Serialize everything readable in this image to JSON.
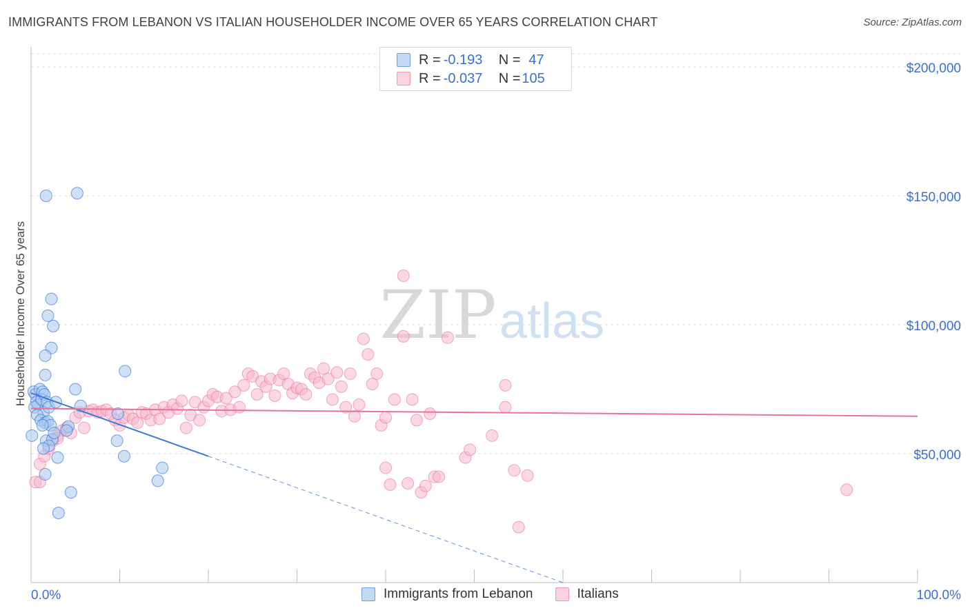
{
  "title": "IMMIGRANTS FROM LEBANON VS ITALIAN HOUSEHOLDER INCOME OVER 65 YEARS CORRELATION CHART",
  "source": "Source: ZipAtlas.com",
  "watermark": {
    "zip": "ZIP",
    "atlas": "atlas"
  },
  "legend_top": [
    {
      "r_label": "R = ",
      "r_value": "-0.193",
      "n_label": "N = ",
      "n_value": "47"
    },
    {
      "r_label": "R = ",
      "r_value": "-0.037",
      "n_label": "N = ",
      "n_value": "105"
    }
  ],
  "colors": {
    "blue": "#3a78d8",
    "blue_fill": "#a9c8f0",
    "pink": "#e8729a",
    "pink_fill": "#f7b8cc",
    "axis_label": "#3a6fd1"
  },
  "chart_data": {
    "type": "scatter",
    "title": "IMMIGRANTS FROM LEBANON VS ITALIAN HOUSEHOLDER INCOME OVER 65 YEARS CORRELATION CHART",
    "xlabel": "",
    "ylabel": "Householder Income Over 65 years",
    "xlim": [
      0,
      100
    ],
    "ylim": [
      0,
      210000
    ],
    "x_tick_labels": [
      "0.0%",
      "100.0%"
    ],
    "y_ticks": [
      50000,
      100000,
      150000,
      200000
    ],
    "y_tick_labels": [
      "$50,000",
      "$100,000",
      "$150,000",
      "$200,000"
    ],
    "grid": true,
    "series": [
      {
        "name": "Immigrants from Lebanon",
        "color": "#3a78d8",
        "trend": {
          "x": [
            0,
            20
          ],
          "y": [
            73500,
            49000
          ],
          "dashed_to": [
            100,
            -49000
          ]
        },
        "points": [
          [
            0.3,
            74000
          ],
          [
            0.5,
            73000
          ],
          [
            0.6,
            70000
          ],
          [
            0.8,
            69000
          ],
          [
            0.4,
            68000
          ],
          [
            1.0,
            75000
          ],
          [
            1.3,
            74000
          ],
          [
            1.2,
            71000
          ],
          [
            1.5,
            73000
          ],
          [
            1.8,
            70000
          ],
          [
            1.4,
            66000
          ],
          [
            0.7,
            65000
          ],
          [
            2.0,
            68000
          ],
          [
            1.1,
            63000
          ],
          [
            1.6,
            62000
          ],
          [
            1.9,
            62500
          ],
          [
            2.2,
            61000
          ],
          [
            1.7,
            55000
          ],
          [
            2.4,
            55500
          ],
          [
            2.0,
            53000
          ],
          [
            1.4,
            52000
          ],
          [
            2.6,
            58000
          ],
          [
            3.0,
            48500
          ],
          [
            1.6,
            42000
          ],
          [
            4.2,
            60500
          ],
          [
            4.5,
            35000
          ],
          [
            4.0,
            59000
          ],
          [
            2.5,
            99500
          ],
          [
            2.3,
            91000
          ],
          [
            1.6,
            88000
          ],
          [
            2.3,
            110000
          ],
          [
            1.9,
            103500
          ],
          [
            1.6,
            80500
          ],
          [
            5.0,
            75000
          ],
          [
            5.6,
            68500
          ],
          [
            10.6,
            82000
          ],
          [
            9.8,
            65500
          ],
          [
            9.7,
            55000
          ],
          [
            10.5,
            49000
          ],
          [
            3.1,
            27000
          ],
          [
            1.7,
            150000
          ],
          [
            5.2,
            151000
          ],
          [
            14.8,
            44500
          ],
          [
            14.3,
            39500
          ],
          [
            0.1,
            57000
          ],
          [
            1.3,
            61000
          ],
          [
            2.8,
            70000
          ]
        ]
      },
      {
        "name": "Italians",
        "color": "#e8729a",
        "trend": {
          "x": [
            0,
            100
          ],
          "y": [
            67500,
            64500
          ]
        },
        "points": [
          [
            0.5,
            39000
          ],
          [
            1.0,
            46000
          ],
          [
            1.5,
            49000
          ],
          [
            2.0,
            52000
          ],
          [
            2.5,
            55000
          ],
          [
            3.0,
            57000
          ],
          [
            3.5,
            59000
          ],
          [
            4.0,
            60000
          ],
          [
            4.5,
            58000
          ],
          [
            5.0,
            64000
          ],
          [
            5.5,
            66000
          ],
          [
            6.0,
            60000
          ],
          [
            6.5,
            66500
          ],
          [
            7.0,
            67000
          ],
          [
            7.5,
            66000
          ],
          [
            8.0,
            66500
          ],
          [
            8.5,
            67000
          ],
          [
            9.0,
            65500
          ],
          [
            9.5,
            63000
          ],
          [
            10.0,
            61000
          ],
          [
            10.5,
            64000
          ],
          [
            11.0,
            65000
          ],
          [
            11.5,
            63500
          ],
          [
            12.0,
            62000
          ],
          [
            12.5,
            66000
          ],
          [
            13.0,
            65500
          ],
          [
            13.5,
            63000
          ],
          [
            14.0,
            67000
          ],
          [
            14.5,
            63500
          ],
          [
            15.0,
            68000
          ],
          [
            15.5,
            66000
          ],
          [
            16.0,
            69000
          ],
          [
            16.5,
            67500
          ],
          [
            17.0,
            70500
          ],
          [
            17.5,
            60000
          ],
          [
            18.0,
            65000
          ],
          [
            18.5,
            70000
          ],
          [
            19.0,
            63000
          ],
          [
            19.5,
            68000
          ],
          [
            20.0,
            70500
          ],
          [
            20.5,
            73000
          ],
          [
            21.0,
            72000
          ],
          [
            21.5,
            66500
          ],
          [
            22.0,
            71500
          ],
          [
            22.5,
            67000
          ],
          [
            23.0,
            74000
          ],
          [
            23.5,
            68000
          ],
          [
            24.0,
            76500
          ],
          [
            24.5,
            81000
          ],
          [
            25.0,
            80000
          ],
          [
            25.5,
            73000
          ],
          [
            26.0,
            78000
          ],
          [
            26.5,
            76000
          ],
          [
            27.0,
            79000
          ],
          [
            27.5,
            72500
          ],
          [
            28.0,
            78500
          ],
          [
            28.5,
            81000
          ],
          [
            29.0,
            77000
          ],
          [
            29.5,
            73500
          ],
          [
            30.0,
            75500
          ],
          [
            30.5,
            75000
          ],
          [
            31.0,
            73000
          ],
          [
            31.5,
            81000
          ],
          [
            32.0,
            79500
          ],
          [
            32.5,
            77500
          ],
          [
            33.0,
            83000
          ],
          [
            33.5,
            79000
          ],
          [
            34.0,
            71000
          ],
          [
            34.5,
            81500
          ],
          [
            35.0,
            76000
          ],
          [
            35.5,
            68000
          ],
          [
            36.0,
            81000
          ],
          [
            36.5,
            64500
          ],
          [
            37.0,
            69000
          ],
          [
            37.5,
            94500
          ],
          [
            38.0,
            88500
          ],
          [
            38.5,
            77000
          ],
          [
            39.0,
            81000
          ],
          [
            39.5,
            61000
          ],
          [
            40.0,
            64000
          ],
          [
            40.5,
            38000
          ],
          [
            41.0,
            71000
          ],
          [
            42.0,
            95500
          ],
          [
            42.5,
            38500
          ],
          [
            43.0,
            71000
          ],
          [
            43.5,
            63000
          ],
          [
            44.0,
            35000
          ],
          [
            44.5,
            37500
          ],
          [
            45.0,
            65500
          ],
          [
            45.5,
            41000
          ],
          [
            46.0,
            41000
          ],
          [
            47.0,
            95000
          ],
          [
            49.0,
            48500
          ],
          [
            49.5,
            51500
          ],
          [
            52.0,
            57000
          ],
          [
            53.5,
            76500
          ],
          [
            53.5,
            68000
          ],
          [
            54.5,
            43500
          ],
          [
            55.0,
            21500
          ],
          [
            56.0,
            41500
          ],
          [
            42.0,
            119000
          ],
          [
            92.0,
            36000
          ],
          [
            1.0,
            39000
          ],
          [
            3.0,
            56000
          ],
          [
            40.0,
            44500
          ]
        ]
      }
    ]
  },
  "bottom_legend": [
    "Immigrants from Lebanon",
    "Italians"
  ]
}
